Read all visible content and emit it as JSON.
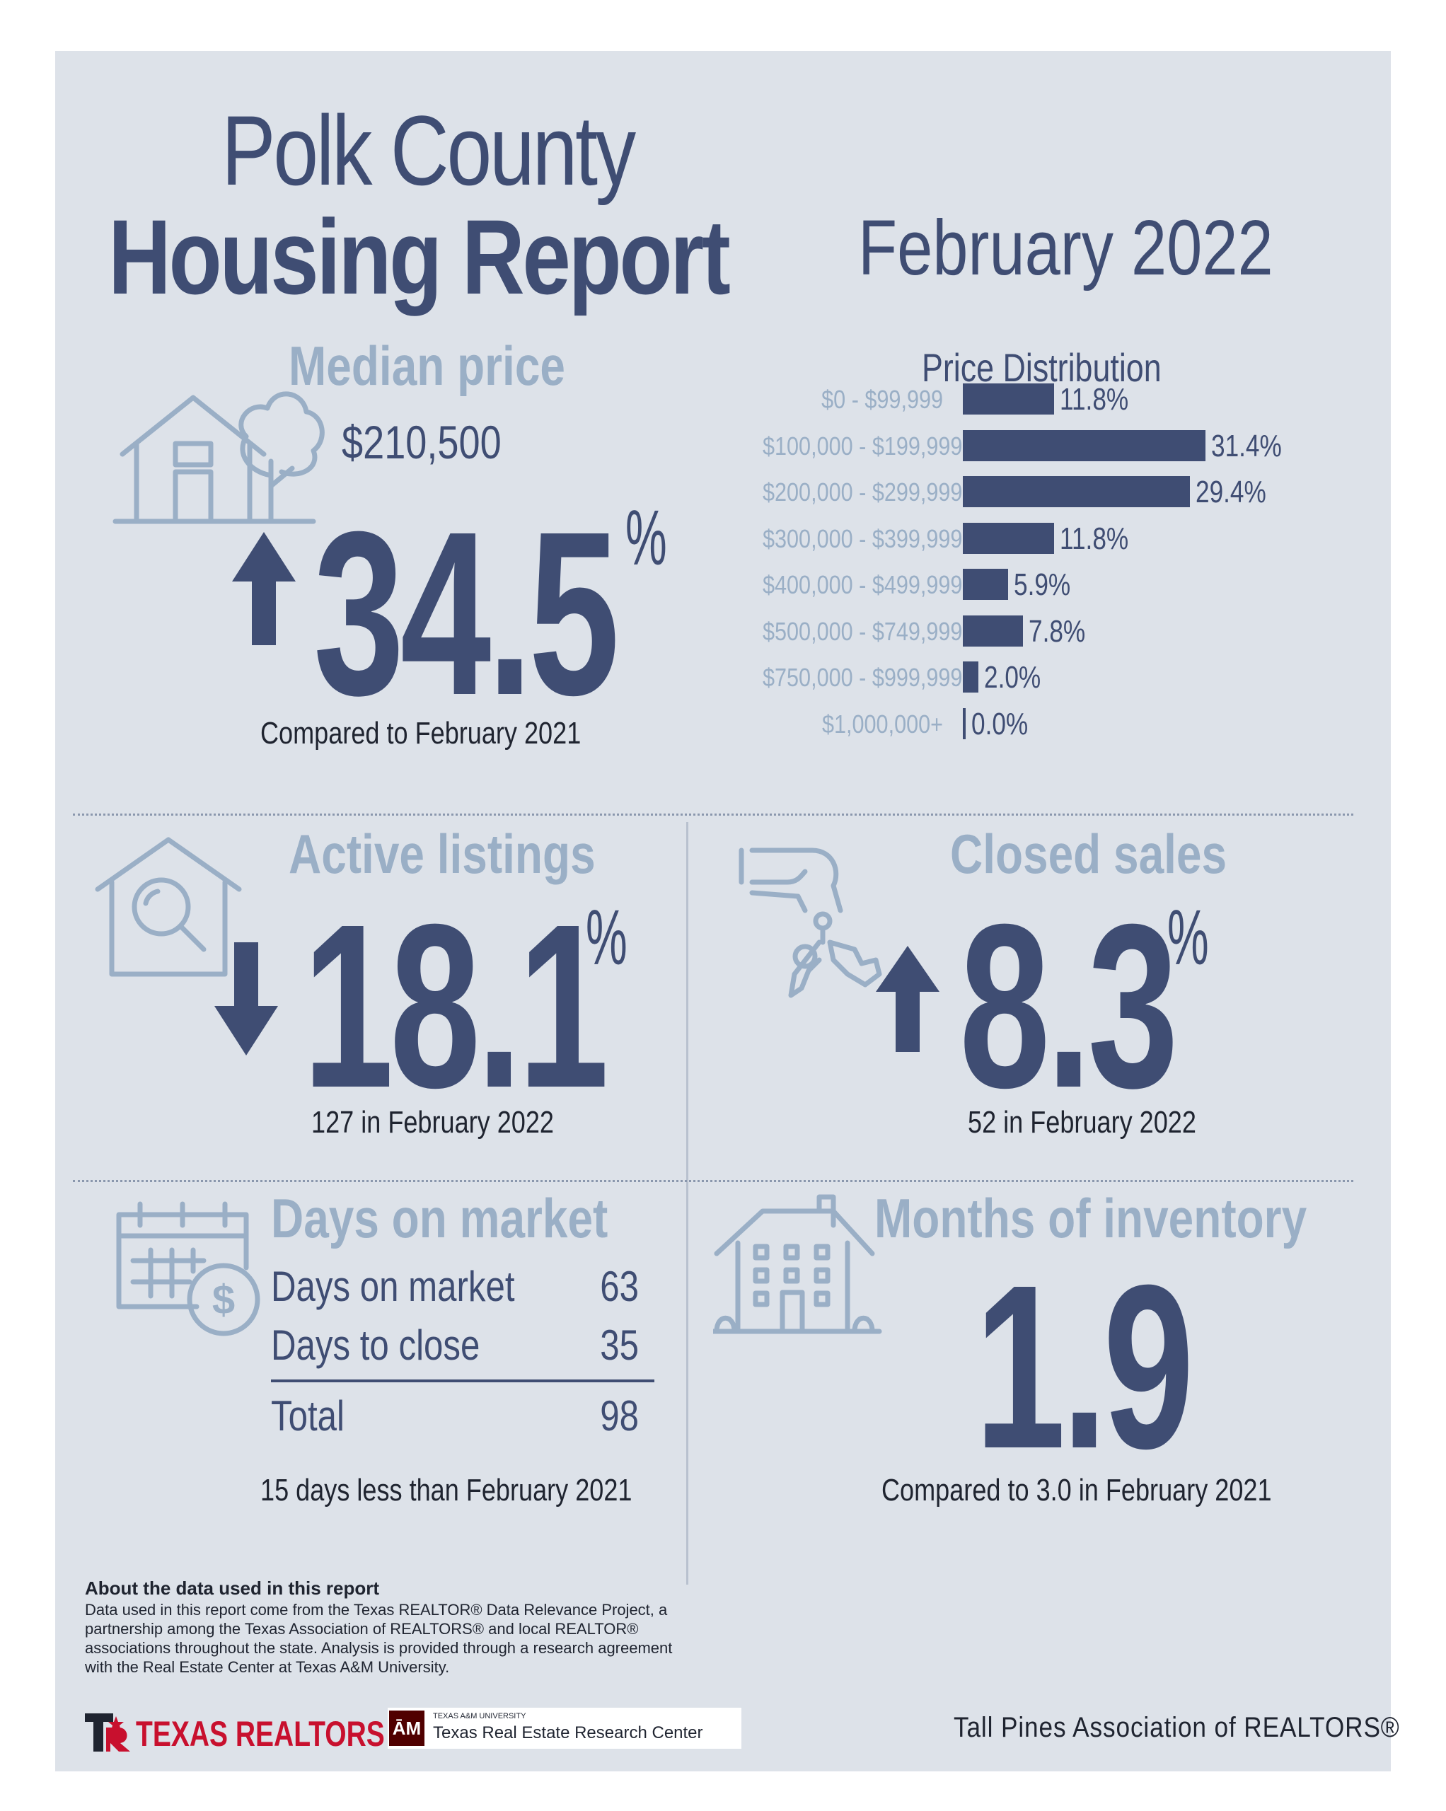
{
  "title": {
    "line1": "Polk County",
    "line2": "Housing Report",
    "period": "February 2022"
  },
  "median_price": {
    "heading": "Median price",
    "value": "$210,500",
    "change": "34.5",
    "percent_sign": "%",
    "direction": "up",
    "comparison": "Compared to February 2021"
  },
  "price_distribution": {
    "heading": "Price Distribution",
    "rows": [
      {
        "range": "$0 - $99,999",
        "percent": 11.8,
        "label": "11.8%"
      },
      {
        "range": "$100,000 - $199,999",
        "percent": 31.4,
        "label": "31.4%"
      },
      {
        "range": "$200,000 - $299,999",
        "percent": 29.4,
        "label": "29.4%"
      },
      {
        "range": "$300,000 - $399,999",
        "percent": 11.8,
        "label": "11.8%"
      },
      {
        "range": "$400,000 - $499,999",
        "percent": 5.9,
        "label": "5.9%"
      },
      {
        "range": "$500,000 - $749,999",
        "percent": 7.8,
        "label": "7.8%"
      },
      {
        "range": "$750,000 - $999,999",
        "percent": 2.0,
        "label": "2.0%"
      },
      {
        "range": "$1,000,000+",
        "percent": 0.0,
        "label": "0.0%"
      }
    ]
  },
  "active_listings": {
    "heading": "Active listings",
    "change": "18.1",
    "percent_sign": "%",
    "direction": "down",
    "note": "127 in February 2022"
  },
  "closed_sales": {
    "heading": "Closed sales",
    "change": "8.3",
    "percent_sign": "%",
    "direction": "up",
    "note": "52 in February 2022"
  },
  "days_on_market": {
    "heading": "Days on market",
    "rows": [
      {
        "label": "Days on market",
        "value": "63"
      },
      {
        "label": "Days to close",
        "value": "35"
      }
    ],
    "total_label": "Total",
    "total_value": "98",
    "note": "15 days less than February 2021"
  },
  "months_inventory": {
    "heading": "Months of inventory",
    "value": "1.9",
    "note": "Compared to 3.0 in February 2021"
  },
  "about": {
    "heading": "About the data used in this report",
    "text": "Data used in this report come from the Texas REALTOR® Data Relevance Project, a partnership among the Texas Association of REALTORS® and local REALTOR® associations throughout the state. Analysis is provided through a research agreement with the Real Estate Center at Texas A&M University."
  },
  "footer": {
    "texas_realtors": "TEXAS REALTORS",
    "tamu_small": "TEXAS A&M UNIVERSITY",
    "tamu_center": "Texas Real Estate Research Center",
    "tamu_logo": "ĀM",
    "association": "Tall Pines Association of REALTORS®"
  },
  "colors": {
    "navy": "#3f4d73",
    "light": "#9aafc6",
    "background": "#dde2e9",
    "brand_red": "#c8102e"
  },
  "icons": [
    "house-tree-icon",
    "house-search-icon",
    "hand-keys-icon",
    "calendar-dollar-icon",
    "apartment-building-icon",
    "up-arrow-icon",
    "down-arrow-icon"
  ]
}
